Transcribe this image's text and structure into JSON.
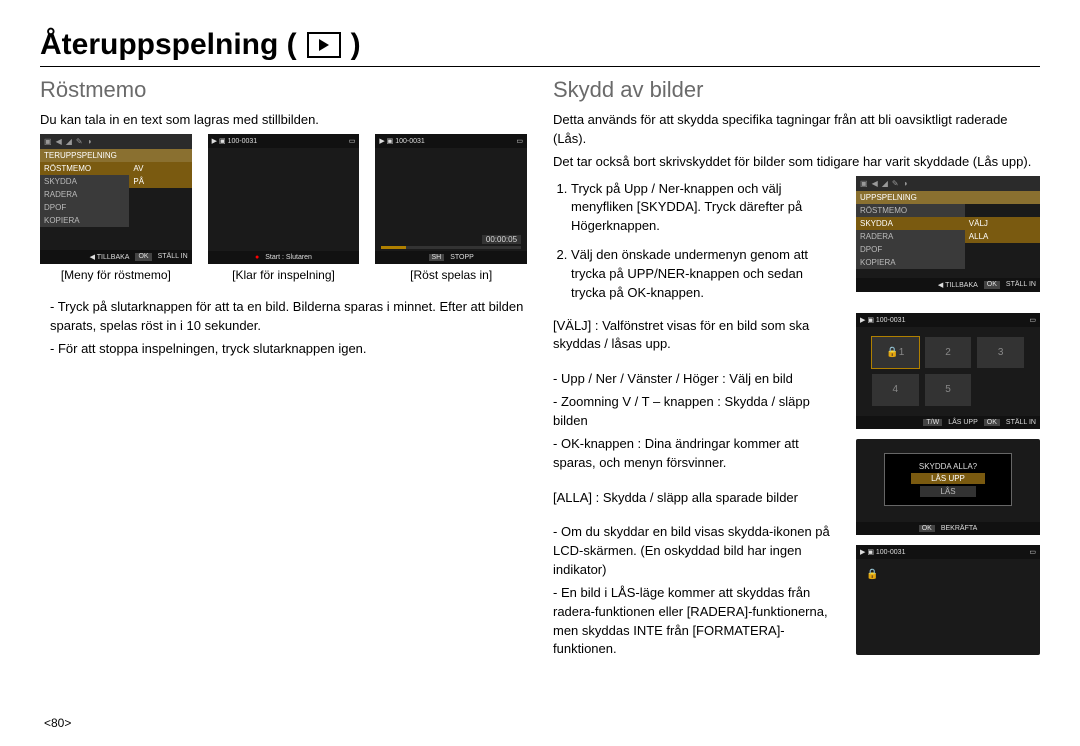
{
  "title": "Återuppspelning (",
  "title_end": ")",
  "left": {
    "heading": "Röstmemo",
    "intro": "Du kan tala in en text som lagras med stillbilden.",
    "captions": [
      "[Meny för röstmemo]",
      "[Klar för inspelning]",
      "[Röst spelas in]"
    ],
    "bullets": [
      "Tryck på slutarknappen för att ta en bild. Bilderna sparas i minnet. Efter att bilden sparats, spelas röst in i 10 sekunder.",
      "För att stoppa inspelningen, tryck slutarknappen igen."
    ],
    "file_counter": "100-0031",
    "menu_title": "TERUPPSPELNING",
    "menu": [
      {
        "k": "RÖSTMEMO",
        "v": "AV",
        "sel": true,
        "hl": true
      },
      {
        "k": "SKYDDA",
        "v": "PÅ",
        "sel": false,
        "hl": true
      },
      {
        "k": "RADERA",
        "v": "",
        "sel": false,
        "hl": false
      },
      {
        "k": "DPOF",
        "v": "",
        "sel": false,
        "hl": false
      },
      {
        "k": "KOPIERA",
        "v": "",
        "sel": false,
        "hl": false
      }
    ],
    "bottom_back": "TILLBAKA",
    "bottom_ok": "OK",
    "bottom_set": "STÄLL IN",
    "rec_hint": "Start : Slutaren",
    "rec_time": "00:00:05",
    "stop_label": "SH",
    "stop_text": "STOPP"
  },
  "right": {
    "heading": "Skydd av bilder",
    "intro1": "Detta används för att skydda specifika tagningar från att bli oavsiktligt raderade (Lås).",
    "intro2": "Det tar också bort skrivskyddet för bilder som tidigare har varit skyddade (Lås upp).",
    "steps": [
      "Tryck på Upp / Ner-knappen och välj menyfliken [SKYDDA]. Tryck därefter på Högerknappen.",
      "Välj den önskade undermenyn genom att trycka på UPP/NER-knappen och sedan trycka på OK-knappen."
    ],
    "valj_line": "[VÄLJ] : Valfönstret visas för en bild som ska skyddas / låsas upp.",
    "sub_bullets": [
      "Upp / Ner / Vänster / Höger : Välj en bild",
      "Zoomning V / T – knappen : Skydda / släpp bilden",
      "OK-knappen : Dina ändringar kommer att sparas, och menyn försvinner."
    ],
    "alla_line": "[ALLA] : Skydda / släpp alla sparade bilder",
    "tail": [
      "Om du skyddar en bild visas skydda-ikonen på LCD-skärmen. (En oskyddad bild har ingen indikator)",
      "En bild i LÅS-läge kommer att skyddas från radera-funktionen eller [RADERA]-funktionerna, men skyddas INTE från [FORMATERA]-funktionen."
    ],
    "menu_title": "UPPSPELNING",
    "menu": [
      {
        "k": "RÖSTMEMO",
        "v": ""
      },
      {
        "k": "SKYDDA",
        "v": "VÄLJ",
        "sel": true,
        "hl": true
      },
      {
        "k": "RADERA",
        "v": "ALLA",
        "sel": false,
        "hl": true
      },
      {
        "k": "DPOF",
        "v": ""
      },
      {
        "k": "KOPIERA",
        "v": ""
      }
    ],
    "bottom_back": "TILLBAKA",
    "bottom_ok": "OK",
    "bottom_set": "STÄLL IN",
    "grid_counter": "100-0031",
    "grid_bottom_l": "T/W",
    "grid_bottom_l2": "LÅS UPP",
    "grid_bottom_ok": "OK",
    "grid_bottom_set": "STÄLL IN",
    "dialog_q": "SKYDDA ALLA?",
    "dialog_opt1": "LÅS UPP",
    "dialog_opt2": "LÅS",
    "dialog_ok": "OK",
    "dialog_confirm": "BEKRÄFTA",
    "last_counter": "100-0031"
  },
  "pagenum": "<80>"
}
